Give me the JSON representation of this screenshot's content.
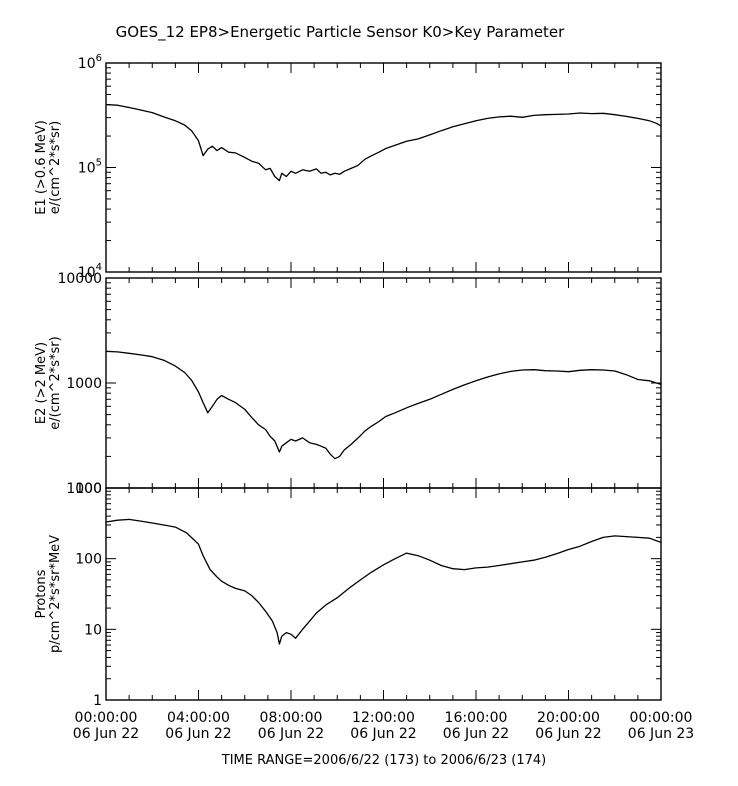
{
  "chart_data": {
    "type": "line",
    "title": "GOES_12   EP8>Energetic Particle Sensor   K0>Key Parameter",
    "footer": "TIME RANGE=2006/6/22 (173) to 2006/6/23 (174)",
    "x_ticks": [
      {
        "top": "00:00:00",
        "bottom": "06 Jun 22"
      },
      {
        "top": "04:00:00",
        "bottom": "06 Jun 22"
      },
      {
        "top": "08:00:00",
        "bottom": "06 Jun 22"
      },
      {
        "top": "12:00:00",
        "bottom": "06 Jun 22"
      },
      {
        "top": "16:00:00",
        "bottom": "06 Jun 22"
      },
      {
        "top": "20:00:00",
        "bottom": "06 Jun 22"
      },
      {
        "top": "00:00:00",
        "bottom": "06 Jun 23"
      }
    ],
    "xlim_hours": [
      0,
      24
    ],
    "panels": [
      {
        "ylabel": [
          "E1 (>0.6 MeV)",
          "e/(cm^2*s*sr)"
        ],
        "scale": "log",
        "ylim": [
          10000,
          1000000
        ],
        "tick_format": "power",
        "ticks": [
          {
            "base": "10",
            "exp": "6"
          },
          {
            "base": "10",
            "exp": "5"
          },
          {
            "base": "10",
            "exp": "4"
          }
        ],
        "series": {
          "x": [
            0,
            0.5,
            1,
            1.5,
            2,
            2.5,
            3,
            3.4,
            3.7,
            4,
            4.2,
            4.4,
            4.6,
            4.8,
            5,
            5.3,
            5.6,
            6,
            6.3,
            6.6,
            6.9,
            7.1,
            7.3,
            7.5,
            7.6,
            7.8,
            8,
            8.2,
            8.5,
            8.8,
            9.1,
            9.3,
            9.5,
            9.7,
            9.9,
            10.1,
            10.3,
            10.6,
            10.9,
            11.2,
            11.5,
            11.8,
            12.1,
            12.5,
            13,
            13.5,
            14,
            14.5,
            15,
            15.5,
            16,
            16.5,
            17,
            17.5,
            18,
            18.5,
            19,
            19.5,
            20,
            20.5,
            21,
            21.5,
            22,
            22.5,
            23,
            23.5,
            23.8,
            24
          ],
          "y": [
            400000,
            395000,
            375000,
            355000,
            335000,
            305000,
            280000,
            255000,
            225000,
            180000,
            130000,
            150000,
            160000,
            145000,
            155000,
            140000,
            138000,
            125000,
            115000,
            110000,
            95000,
            98000,
            82000,
            75000,
            88000,
            82000,
            92000,
            88000,
            95000,
            92000,
            97000,
            88000,
            90000,
            85000,
            88000,
            86000,
            92000,
            98000,
            105000,
            120000,
            130000,
            140000,
            152000,
            163000,
            178000,
            188000,
            205000,
            225000,
            245000,
            262000,
            280000,
            295000,
            305000,
            310000,
            302000,
            315000,
            320000,
            322000,
            325000,
            332000,
            328000,
            330000,
            320000,
            308000,
            295000,
            280000,
            265000,
            250000
          ]
        }
      },
      {
        "ylabel": [
          "E2 (>2 MeV)",
          "e/(cm^2*s*sr)"
        ],
        "scale": "log",
        "ylim": [
          100,
          10000
        ],
        "tick_format": "plain",
        "ticks": [
          {
            "label": "10000"
          },
          {
            "label": "1000"
          },
          {
            "label": "100"
          }
        ],
        "series": {
          "x": [
            0,
            0.5,
            1,
            1.5,
            2,
            2.5,
            3,
            3.4,
            3.7,
            4,
            4.2,
            4.4,
            4.6,
            4.8,
            5,
            5.3,
            5.6,
            6,
            6.3,
            6.6,
            6.9,
            7.1,
            7.3,
            7.5,
            7.6,
            7.8,
            8,
            8.2,
            8.5,
            8.8,
            9.1,
            9.3,
            9.5,
            9.7,
            9.9,
            10.1,
            10.3,
            10.6,
            10.9,
            11.2,
            11.5,
            11.8,
            12.1,
            12.5,
            13,
            13.5,
            14,
            14.5,
            15,
            15.5,
            16,
            16.5,
            17,
            17.5,
            18,
            18.5,
            19,
            19.5,
            20,
            20.5,
            21,
            21.5,
            22,
            22.5,
            23,
            23.5,
            23.8,
            24
          ],
          "y": [
            2000,
            1980,
            1920,
            1850,
            1780,
            1650,
            1450,
            1260,
            1060,
            820,
            650,
            520,
            600,
            700,
            760,
            700,
            650,
            560,
            470,
            400,
            360,
            310,
            280,
            220,
            250,
            270,
            290,
            280,
            300,
            270,
            260,
            250,
            240,
            210,
            190,
            200,
            230,
            260,
            300,
            350,
            390,
            430,
            480,
            520,
            580,
            640,
            700,
            780,
            870,
            960,
            1050,
            1140,
            1220,
            1290,
            1330,
            1340,
            1310,
            1300,
            1280,
            1320,
            1340,
            1330,
            1300,
            1200,
            1080,
            1050,
            1000,
            970
          ]
        }
      },
      {
        "ylabel": [
          "Protons",
          "p/cm^2*s*sr*MeV"
        ],
        "scale": "log",
        "ylim": [
          1,
          1000
        ],
        "tick_format": "plain",
        "ticks": [
          {
            "label": "1000"
          },
          {
            "label": "100"
          },
          {
            "label": "10"
          },
          {
            "label": "1"
          }
        ],
        "series": {
          "x": [
            0,
            0.5,
            1,
            1.5,
            2,
            2.5,
            3,
            3.5,
            4,
            4.2,
            4.5,
            4.8,
            5,
            5.3,
            5.6,
            6,
            6.3,
            6.6,
            6.9,
            7.2,
            7.4,
            7.5,
            7.6,
            7.8,
            8,
            8.2,
            8.5,
            8.8,
            9.1,
            9.5,
            10,
            10.5,
            11,
            11.5,
            12,
            12.5,
            13,
            13.5,
            14,
            14.5,
            15,
            15.5,
            16,
            16.5,
            17,
            17.5,
            18,
            18.5,
            19,
            19.5,
            20,
            20.5,
            21,
            21.5,
            22,
            22.5,
            23,
            23.5,
            24
          ],
          "y": [
            330,
            350,
            360,
            340,
            320,
            300,
            280,
            230,
            160,
            110,
            70,
            55,
            48,
            42,
            38,
            35,
            30,
            24,
            18,
            13,
            9,
            6.2,
            8,
            9,
            8.5,
            7.5,
            10,
            13,
            17,
            22,
            28,
            38,
            50,
            65,
            82,
            100,
            120,
            110,
            95,
            80,
            72,
            70,
            74,
            76,
            80,
            85,
            90,
            95,
            105,
            118,
            135,
            150,
            175,
            200,
            210,
            205,
            200,
            195,
            170
          ]
        }
      }
    ]
  }
}
